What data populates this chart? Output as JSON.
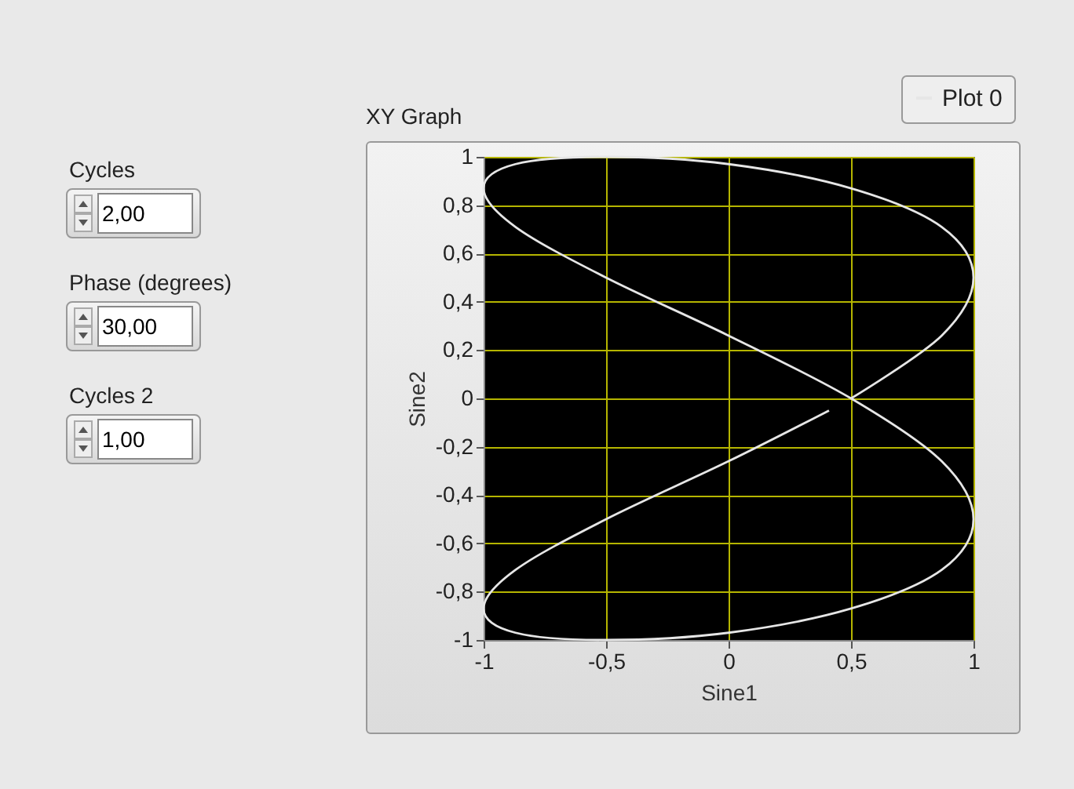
{
  "chart_data": {
    "type": "line",
    "title": "XY Graph",
    "xlabel": "Sine1",
    "ylabel": "Sine2",
    "annotations": [
      "Cycles",
      "2,00",
      "Phase (degrees)",
      "30,00",
      "Cycles 2",
      "1,00"
    ],
    "legend": "top right",
    "grid": true,
    "line_style": "solid",
    "marker": "none",
    "xlim": [
      -1,
      1
    ],
    "ylim": [
      -1,
      1
    ],
    "xticks": [
      -1,
      {
        "value": -0.5,
        "label": "-0,5"
      },
      0,
      {
        "value": 0.5,
        "label": "0,5"
      },
      1
    ],
    "yticks": [
      -1,
      {
        "value": -0.8,
        "label": "-0,8"
      },
      {
        "value": -0.6,
        "label": "-0,6"
      },
      {
        "value": -0.4,
        "label": "-0,4"
      },
      {
        "value": -0.2,
        "label": "-0,2"
      },
      0,
      {
        "value": 0.2,
        "label": "0,2"
      },
      {
        "value": 0.4,
        "label": "0,4"
      },
      {
        "value": 0.6,
        "label": "0,6"
      },
      {
        "value": 0.8,
        "label": "0,8"
      },
      1
    ],
    "series": [
      {
        "name": "Plot 0",
        "color": "#e6e6e6",
        "x": [
          0.5,
          0.87,
          1,
          0.87,
          0.5,
          0,
          -0.5,
          -0.87,
          -1,
          -0.87,
          -0.5,
          0,
          0.5,
          0.87,
          1,
          0.87,
          0.5,
          0,
          -0.5,
          -0.87,
          -1,
          -0.87,
          -0.5,
          0,
          0.41
        ],
        "values": [
          0,
          0.26,
          0.5,
          0.71,
          0.87,
          0.97,
          1,
          0.97,
          0.87,
          0.71,
          0.5,
          0.26,
          0,
          -0.26,
          -0.5,
          -0.71,
          -0.87,
          -0.97,
          -1,
          -0.97,
          -0.87,
          -0.71,
          -0.5,
          -0.26,
          -0.05
        ]
      }
    ]
  }
}
